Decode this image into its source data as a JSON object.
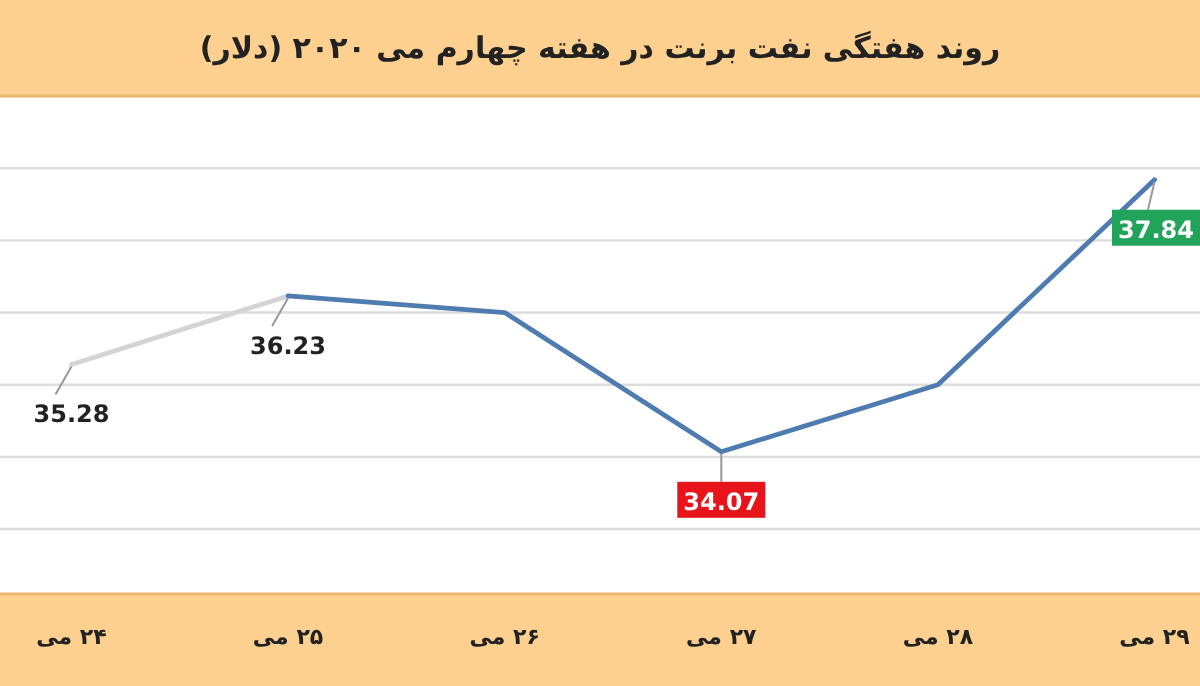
{
  "chart_data": {
    "type": "line",
    "title": "روند هفتگی نفت برنت در هفته چهارم می ۲۰۲۰ (دلار)",
    "categories": [
      "۲۴ می",
      "۲۵ می",
      "۲۶ می",
      "۲۷ می",
      "۲۸ می",
      "۲۹ می"
    ],
    "series": [
      {
        "color": "#d4d4d4",
        "values": [
          35.28,
          36.23,
          null,
          null,
          null,
          null
        ],
        "value_labels": [
          "35.28",
          "36.23",
          null,
          null,
          null,
          null
        ]
      },
      {
        "color": "#4f7cb0",
        "values": [
          null,
          36.23,
          36.0,
          34.07,
          35.0,
          37.84
        ],
        "value_labels": [
          null,
          null,
          null,
          "34.07",
          null,
          "37.84"
        ]
      }
    ],
    "ylim": [
      32.1,
      39
    ],
    "yticks": [
      {
        "value": 33,
        "label": null
      },
      {
        "value": 34,
        "label": null
      },
      {
        "value": 35,
        "label": null
      },
      {
        "value": 36,
        "label": null
      },
      {
        "value": 37,
        "label": null
      },
      {
        "value": 38,
        "label": null
      }
    ],
    "grid": "y",
    "tick_labels": "x",
    "marker": "none",
    "line_style": "solid"
  }
}
